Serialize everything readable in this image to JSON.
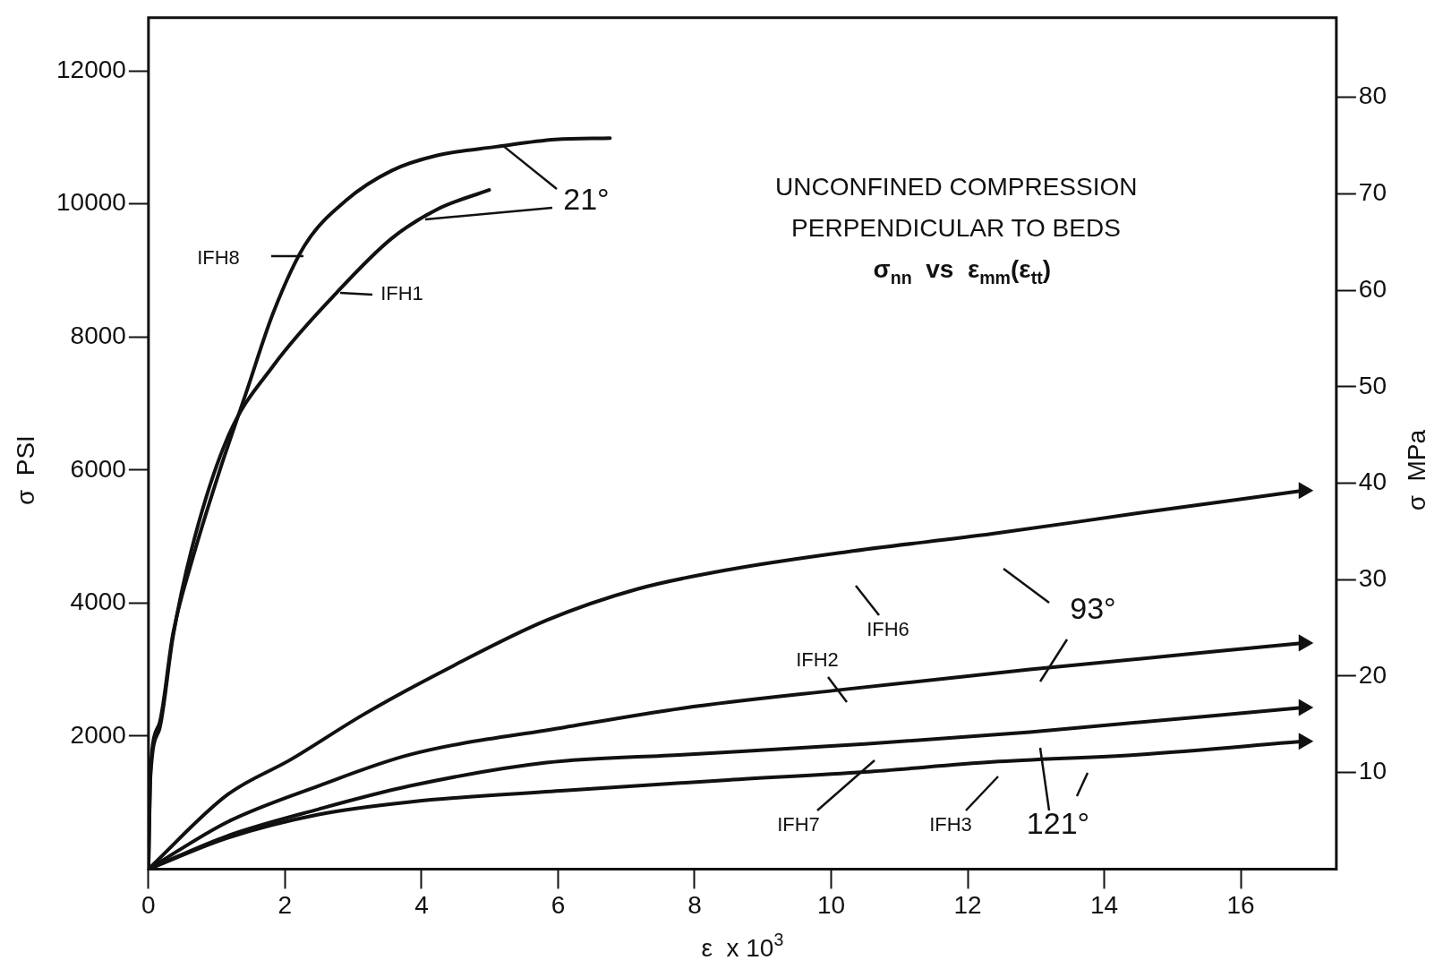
{
  "chart_data": {
    "type": "line",
    "title": "UNCONFINED COMPRESSION\nPERPENDICULAR TO BEDS",
    "subtitle": "σ$_{nn}$  vs  ε$_{mm}$(ε$_{tt}$)",
    "xlabel": "ε  x 10$^{3}$",
    "ylabel": "σ  PSI",
    "y2label": "σ  MPa",
    "xlim": [
      0,
      17.4
    ],
    "xticks": [
      0,
      2,
      4,
      6,
      8,
      10,
      12,
      14,
      16
    ],
    "ylim": [
      0,
      12800
    ],
    "yticks": [
      2000,
      4000,
      6000,
      8000,
      10000,
      12000
    ],
    "y2lim": [
      0,
      88.25
    ],
    "y2ticks": [
      10,
      20,
      30,
      40,
      50,
      60,
      70,
      80
    ],
    "grid": false,
    "legend": false,
    "line_style": "solid",
    "series": [
      {
        "color": "#111111",
        "x": [
          0,
          0.03,
          0.16,
          0.36,
          0.63,
          1.03,
          1.43,
          1.83,
          2.29,
          2.89,
          3.56,
          4.23,
          5.09,
          5.96,
          6.76
        ],
        "values": [
          0,
          1500,
          2190,
          3540,
          4610,
          5950,
          7160,
          8370,
          9380,
          10050,
          10500,
          10730,
          10860,
          10970,
          10990
        ]
      },
      {
        "color": "#111111",
        "x": [
          0,
          0.03,
          0.16,
          0.36,
          0.63,
          1.16,
          1.83,
          2.76,
          3.56,
          4.23,
          4.99
        ],
        "values": [
          0,
          1400,
          2100,
          3500,
          4800,
          6490,
          7570,
          8670,
          9480,
          9920,
          10210
        ]
      },
      {
        "color": "#111111",
        "x": [
          0,
          1.16,
          2.09,
          3.16,
          4.49,
          5.83,
          7.16,
          8.49,
          10.23,
          12.36,
          14.49,
          16.92
        ],
        "values": [
          0,
          1120,
          1650,
          2330,
          3070,
          3740,
          4210,
          4500,
          4770,
          5040,
          5350,
          5690
        ]
      },
      {
        "color": "#111111",
        "x": [
          0,
          1.16,
          2.49,
          3.83,
          6.09,
          7.83,
          10.09,
          12.91,
          16.92
        ],
        "values": [
          0,
          710,
          1250,
          1720,
          2130,
          2420,
          2690,
          3000,
          3400
        ]
      },
      {
        "color": "#111111",
        "x": [
          0,
          1.16,
          2.49,
          3.83,
          5.83,
          7.83,
          10.49,
          12.91,
          16.92
        ],
        "values": [
          0,
          500,
          900,
          1250,
          1600,
          1720,
          1880,
          2060,
          2430
        ]
      },
      {
        "color": "#111111",
        "x": [
          0,
          1.16,
          2.49,
          3.83,
          6.09,
          8.49,
          10.49,
          12.36,
          14.49,
          16.92
        ],
        "values": [
          0,
          470,
          820,
          1010,
          1180,
          1340,
          1460,
          1610,
          1720,
          1920
        ]
      }
    ],
    "annotations": [
      "IFH8",
      "IFH1",
      {
        "text": "21°",
        "x": 5.2,
        "y": 10870
      },
      "IFH6",
      "IFH2",
      "93°",
      "IFH7",
      "IFH3",
      "121°"
    ]
  }
}
